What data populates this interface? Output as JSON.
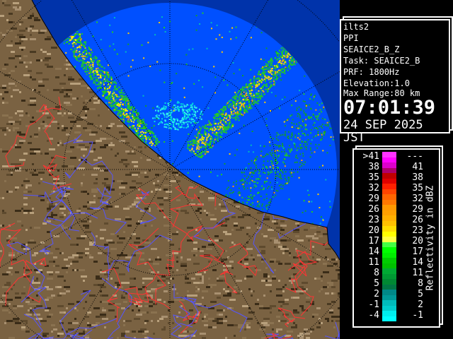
{
  "info": {
    "lines": [
      "ilts2",
      "PPI",
      "SEAICE2_B_Z",
      "Task: SEAICE2_B",
      "PRF: 1800Hz",
      "Elevation:1.0",
      "Max Range:80 km"
    ],
    "time": "07:01:39",
    "date": "24 SEP 2025 JST"
  },
  "legend": {
    "unit": "Reflectivity in dBZ",
    "rows": [
      {
        "low": ">41",
        "high": "---",
        "colors": [
          "#ff33ff",
          "#ff00ff"
        ]
      },
      {
        "low": "38",
        "high": "41",
        "colors": [
          "#dd00cc",
          "#b0006a"
        ]
      },
      {
        "low": "35",
        "high": "38",
        "colors": [
          "#c00000",
          "#e00000"
        ]
      },
      {
        "low": "32",
        "high": "35",
        "colors": [
          "#ff2000",
          "#ff4400"
        ]
      },
      {
        "low": "29",
        "high": "32",
        "colors": [
          "#ff6600",
          "#ff7700"
        ]
      },
      {
        "low": "26",
        "high": "29",
        "colors": [
          "#ff9900",
          "#ffa000"
        ]
      },
      {
        "low": "23",
        "high": "26",
        "colors": [
          "#ffb000",
          "#ffc000"
        ]
      },
      {
        "low": "20",
        "high": "23",
        "colors": [
          "#ffdd00",
          "#ffff00"
        ]
      },
      {
        "low": "17",
        "high": "20",
        "colors": [
          "#ffff44",
          "#44ff44"
        ]
      },
      {
        "low": "14",
        "high": "17",
        "colors": [
          "#00ff00",
          "#00ee00"
        ]
      },
      {
        "low": "11",
        "high": "14",
        "colors": [
          "#00cc00",
          "#00c000"
        ]
      },
      {
        "low": "8",
        "high": "11",
        "colors": [
          "#00aa33",
          "#009933"
        ]
      },
      {
        "low": "5",
        "high": "8",
        "colors": [
          "#008833",
          "#007744"
        ]
      },
      {
        "low": "2",
        "high": "5",
        "colors": [
          "#008888",
          "#009999"
        ]
      },
      {
        "low": "-1",
        "high": "2",
        "colors": [
          "#00bbbb",
          "#00cccc"
        ]
      },
      {
        "low": "-4",
        "high": "-1",
        "colors": [
          "#00eeee",
          "#00ffff"
        ]
      }
    ]
  },
  "map": {
    "sea_color": "#0050ff",
    "outside_color": "#0033aa",
    "land_color": "#7a6242"
  }
}
